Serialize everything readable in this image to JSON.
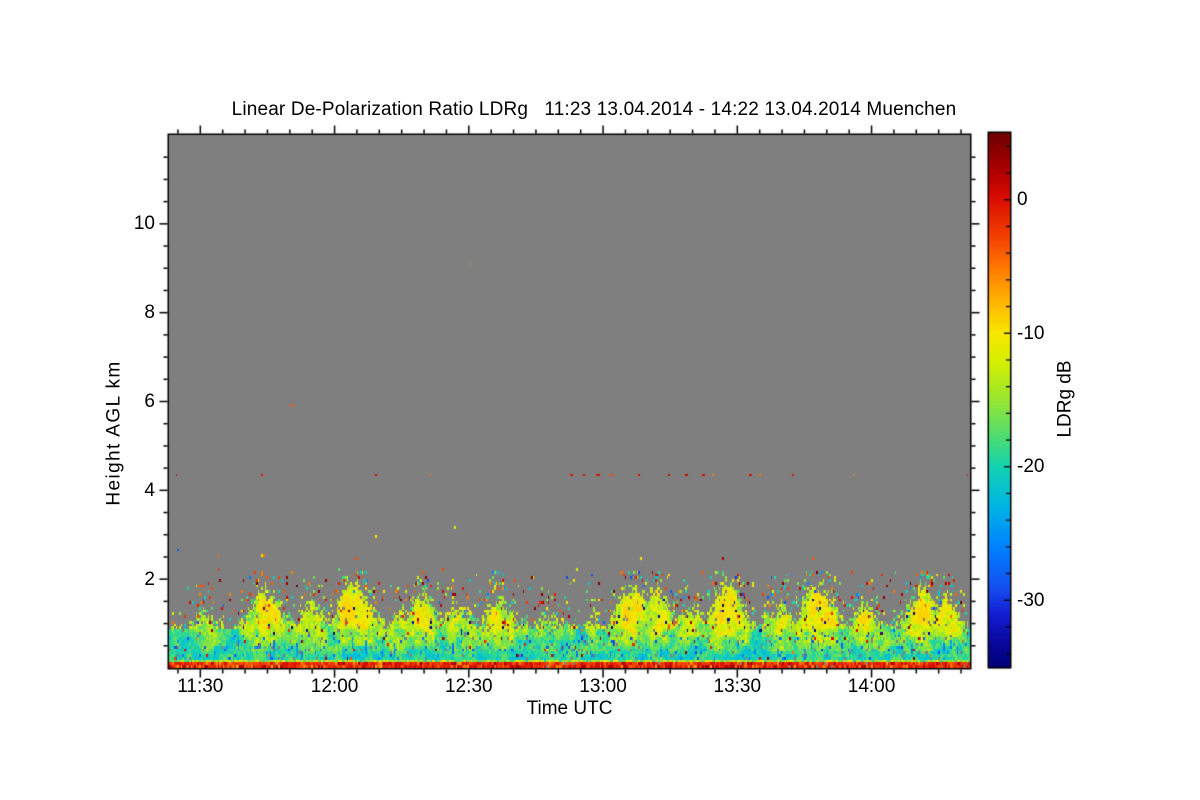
{
  "title": {
    "text": "Linear De-Polarization Ratio LDRg   11:23 13.04.2014 - 14:22 13.04.2014 Muenchen"
  },
  "colors": {
    "page_background": "#ffffff",
    "no_data_gray": "#7f7f7f",
    "frame": "#000000",
    "text": "#000000"
  },
  "axes": {
    "x": {
      "label": "Time UTC",
      "start": "11:23",
      "end": "14:22",
      "start_min": 683,
      "end_min": 862,
      "major_ticks": [
        {
          "min": 690,
          "label": "11:30"
        },
        {
          "min": 720,
          "label": "12:00"
        },
        {
          "min": 750,
          "label": "12:30"
        },
        {
          "min": 780,
          "label": "13:00"
        },
        {
          "min": 810,
          "label": "13:30"
        },
        {
          "min": 840,
          "label": "14:00"
        }
      ],
      "minor_step_min": 5
    },
    "y": {
      "label": "Height AGL km",
      "min_km": 0,
      "max_km": 12,
      "major_ticks": [
        {
          "km": 2,
          "label": "2"
        },
        {
          "km": 4,
          "label": "4"
        },
        {
          "km": 6,
          "label": "6"
        },
        {
          "km": 8,
          "label": "8"
        },
        {
          "km": 10,
          "label": "10"
        }
      ],
      "minor_step_km": 0.5
    }
  },
  "colorbar": {
    "label": "LDRg dB",
    "max_db": 5,
    "min_db": -35,
    "major_ticks": [
      {
        "db": 0,
        "label": "0"
      },
      {
        "db": -10,
        "label": "-10"
      },
      {
        "db": -20,
        "label": "-20"
      },
      {
        "db": -30,
        "label": "-30"
      }
    ],
    "minor_step_db": 2,
    "stops": [
      [
        5,
        "#6e0000"
      ],
      [
        2,
        "#b40000"
      ],
      [
        0,
        "#dc0f00"
      ],
      [
        -3,
        "#f54600"
      ],
      [
        -5,
        "#ff7800"
      ],
      [
        -8,
        "#ffbe00"
      ],
      [
        -10,
        "#f8e800"
      ],
      [
        -12,
        "#d8f000"
      ],
      [
        -15,
        "#96e632"
      ],
      [
        -18,
        "#46dc78"
      ],
      [
        -20,
        "#14d2b4"
      ],
      [
        -23,
        "#00b4e6"
      ],
      [
        -26,
        "#0082ff"
      ],
      [
        -29,
        "#1450f0"
      ],
      [
        -31,
        "#141ed2"
      ],
      [
        -33,
        "#0a0aa0"
      ],
      [
        -35,
        "#000078"
      ]
    ]
  },
  "chart_data": {
    "type": "heatmap",
    "title": "Linear De-Polarization Ratio LDRg",
    "station": "Muenchen",
    "time_start": "11:23 13.04.2014",
    "time_end": "14:22 13.04.2014",
    "xlabel": "Time UTC",
    "ylabel": "Height AGL km",
    "value_label": "LDRg dB",
    "x_range_minutes_utc": [
      683,
      862
    ],
    "y_range_km": [
      0,
      12
    ],
    "value_range_db": [
      -35,
      5
    ],
    "x_tick_labels": [
      "11:30",
      "12:00",
      "12:30",
      "13:00",
      "13:30",
      "14:00"
    ],
    "y_tick_labels": [
      "2",
      "4",
      "6",
      "8",
      "10"
    ],
    "colorbar_tick_labels": [
      "0",
      "-10",
      "-20",
      "-30"
    ],
    "no_data_color": "#7f7f7f",
    "description": "Time-height quicklook of linear depolarization ratio LDRg over Muenchen. Boundary-layer echoes below ~2.2 km AGL form convective plumes (mostly -22..-8 dB, cyan-green-yellow with sparse red/dark-red and blue specks), a ground-clutter stripe near 0.1 km at ~0..+5 dB spans the whole record, intermittent point targets appear at 4.4 km (~0 dB) mainly between 13:00 and 14:10, a few isolated specks aloft; gray means no signal.",
    "render": {
      "seed": 20140413,
      "cols": 478,
      "rows": 192,
      "row_km": 0.0625,
      "baseline_top_km": 1.0,
      "plumes": [
        {
          "t": 8.0,
          "top_km": 1.45,
          "w_min": 2.2
        },
        {
          "t": 21.5,
          "top_km": 1.95,
          "w_min": 2.6
        },
        {
          "t": 31.5,
          "top_km": 1.6,
          "w_min": 2.2
        },
        {
          "t": 40.9,
          "top_km": 2.05,
          "w_min": 2.8
        },
        {
          "t": 51.2,
          "top_km": 1.5,
          "w_min": 1.8
        },
        {
          "t": 56.5,
          "top_km": 1.95,
          "w_min": 2.2
        },
        {
          "t": 63.9,
          "top_km": 1.7,
          "w_min": 2.4
        },
        {
          "t": 74.0,
          "top_km": 1.75,
          "w_min": 2.6
        },
        {
          "t": 85.1,
          "top_km": 1.35,
          "w_min": 2.0
        },
        {
          "t": 95.2,
          "top_km": 1.25,
          "w_min": 2.0
        },
        {
          "t": 103.5,
          "top_km": 2.1,
          "w_min": 2.6
        },
        {
          "t": 109.3,
          "top_km": 2.0,
          "w_min": 2.2
        },
        {
          "t": 116.9,
          "top_km": 1.6,
          "w_min": 2.0
        },
        {
          "t": 124.9,
          "top_km": 2.1,
          "w_min": 2.8
        },
        {
          "t": 136.5,
          "top_km": 1.55,
          "w_min": 2.4
        },
        {
          "t": 145.0,
          "top_km": 2.05,
          "w_min": 2.8
        },
        {
          "t": 155.5,
          "top_km": 1.7,
          "w_min": 2.2
        },
        {
          "t": 168.9,
          "top_km": 2.0,
          "w_min": 3.0
        },
        {
          "t": 173.8,
          "top_km": 1.85,
          "w_min": 2.0
        }
      ],
      "clutter_stripe": {
        "km_band": [
          0.0625,
          0.125
        ],
        "value_db_range": [
          -2,
          5
        ],
        "gap_prob": 0.05
      },
      "dotted_line": {
        "km": 4.36,
        "dots": [
          {
            "t": 1.5,
            "w": 1,
            "db": 0
          },
          {
            "t": 20.9,
            "w": 1,
            "db": 0
          },
          {
            "t": 46.3,
            "w": 1,
            "db": 0
          },
          {
            "t": 58.2,
            "w": 1,
            "db": -5
          },
          {
            "t": 89.5,
            "w": 2,
            "db": 0
          },
          {
            "t": 92.5,
            "w": 1,
            "db": 0
          },
          {
            "t": 95.5,
            "w": 2,
            "db": 0
          },
          {
            "t": 98.5,
            "w": 2,
            "db": -3
          },
          {
            "t": 105.2,
            "w": 1,
            "db": 0
          },
          {
            "t": 111.9,
            "w": 1,
            "db": 0
          },
          {
            "t": 115.6,
            "w": 2,
            "db": 0
          },
          {
            "t": 119.4,
            "w": 2,
            "db": 0
          },
          {
            "t": 121.6,
            "w": 1,
            "db": -5
          },
          {
            "t": 129.8,
            "w": 2,
            "db": 0
          },
          {
            "t": 132.0,
            "w": 1,
            "db": -5
          },
          {
            "t": 139.5,
            "w": 1,
            "db": 0
          },
          {
            "t": 152.9,
            "w": 1,
            "db": -5
          },
          {
            "t": 178.3,
            "w": 1,
            "db": 0
          }
        ]
      },
      "isolated_specks": [
        {
          "t": 67.7,
          "km": 9.12,
          "db": -5
        },
        {
          "t": 27.7,
          "km": 5.92,
          "db": -4
        },
        {
          "t": 2.0,
          "km": 2.68,
          "db": -28
        },
        {
          "t": 11.2,
          "km": 2.52,
          "db": -5
        },
        {
          "t": 46.3,
          "km": 2.97,
          "db": -10
        },
        {
          "t": 63.7,
          "km": 3.17,
          "db": -11
        }
      ]
    }
  }
}
